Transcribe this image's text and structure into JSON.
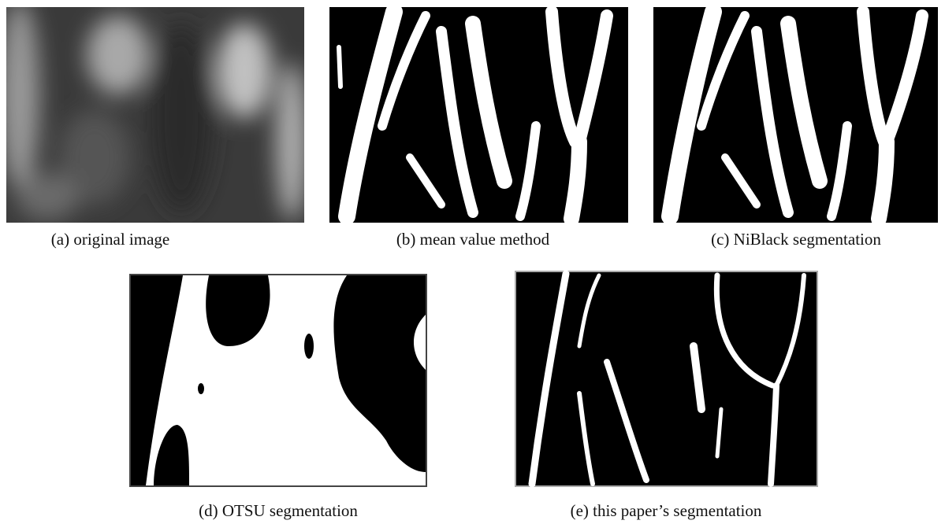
{
  "figure": {
    "panels": [
      {
        "caption": "(a) original image"
      },
      {
        "caption": "(b) mean value method"
      },
      {
        "caption": "(c) NiBlack segmentation"
      },
      {
        "caption": "(d) OTSU segmentation"
      },
      {
        "caption": "(e) this paper’s segmentation"
      }
    ]
  }
}
